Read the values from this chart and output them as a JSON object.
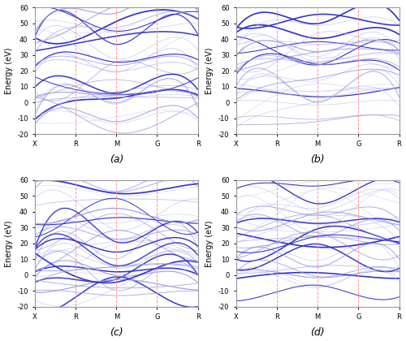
{
  "subplot_labels": [
    "(a)",
    "(b)",
    "(c)",
    "(d)"
  ],
  "x_tick_labels": [
    "X",
    "R",
    "M",
    "G",
    "R"
  ],
  "x_tick_positions": [
    0.0,
    0.25,
    0.5,
    0.75,
    1.0
  ],
  "ylabel": "Energy (eV)",
  "ylim_a": [
    -20,
    60
  ],
  "ylim_bcd": [
    -20,
    60
  ],
  "yticks": [
    -20,
    -10,
    0,
    10,
    20,
    30,
    40,
    50,
    60
  ],
  "vline_positions": [
    0.25,
    0.5,
    0.75
  ],
  "vline_color": "#ff8888",
  "vline_style": "--",
  "line_color_blue": "#3333cc",
  "line_color_light": "#9999dd",
  "line_color_pale": "#bbbbee",
  "num_bands": 30,
  "num_points": 300,
  "background_color": "#ffffff",
  "spine_color": "#999999"
}
